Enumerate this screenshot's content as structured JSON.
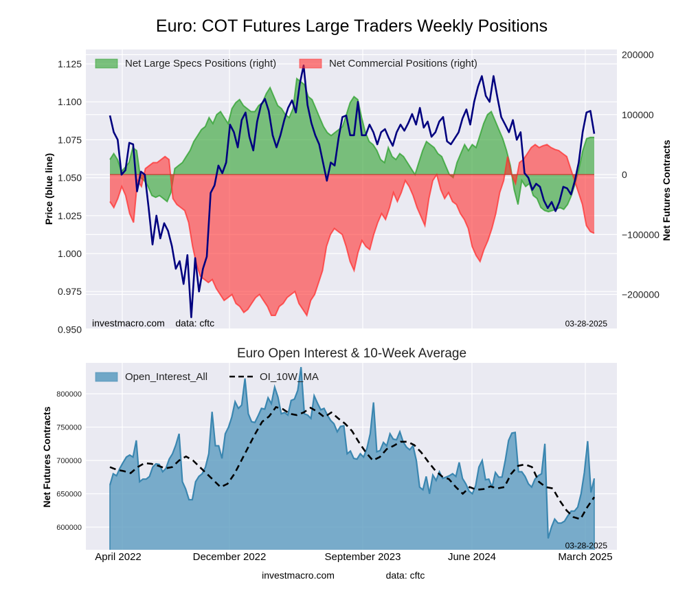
{
  "title": "Euro: COT Futures Large Traders Weekly Positions",
  "chart_data": [
    {
      "type": "area",
      "title": "Euro: COT Futures Large Traders Weekly Positions",
      "ylabel_left": "Price (blue line)",
      "ylabel_right": "Net Futures Contracts",
      "ylim_left": [
        0.95,
        1.13
      ],
      "ylim_right": [
        -260000,
        205000
      ],
      "yticks_left": [
        "0.950",
        "0.975",
        "1.000",
        "1.025",
        "1.050",
        "1.075",
        "1.100",
        "1.125"
      ],
      "yticks_left_values": [
        0.95,
        0.975,
        1.0,
        1.025,
        1.05,
        1.075,
        1.1,
        1.125
      ],
      "yticks_right": [
        "200000",
        "100000",
        "0",
        "−100000",
        "−200000"
      ],
      "yticks_right_values": [
        200000,
        100000,
        0,
        -100000,
        -200000
      ],
      "grid": true,
      "legend_position": "top",
      "legend": [
        {
          "label": "Net Large Specs Positions (right)",
          "color": "#2ca02c"
        },
        {
          "label": "Net Commercial Positions (right)",
          "color": "#ff3030"
        }
      ],
      "x_period": "2022-03 to 2025-03-28 (weekly, sampled)",
      "series": [
        {
          "name": "Price",
          "axis": "left",
          "color": "#00007f",
          "values": [
            1.091,
            1.08,
            1.075,
            1.052,
            1.055,
            1.073,
            1.072,
            1.041,
            1.054,
            1.052,
            1.03,
            1.006,
            1.025,
            1.01,
            1.02,
            1.015,
            1.005,
            0.99,
            0.995,
            0.98,
            0.999,
            0.958,
            0.997,
            0.975,
            0.99,
            0.998,
            1.04,
            1.045,
            1.058,
            1.053,
            1.06,
            1.085,
            1.08,
            1.07,
            1.088,
            1.093,
            1.077,
            1.068,
            1.087,
            1.098,
            1.102,
            1.094,
            1.078,
            1.07,
            1.078,
            1.088,
            1.096,
            1.101,
            1.093,
            1.112,
            1.124,
            1.098,
            1.086,
            1.078,
            1.072,
            1.06,
            1.048,
            1.06,
            1.058,
            1.076,
            1.09,
            1.091,
            1.078,
            1.078,
            1.1,
            1.078,
            1.078,
            1.085,
            1.08,
            1.072,
            1.08,
            1.082,
            1.076,
            1.071,
            1.08,
            1.085,
            1.081,
            1.086,
            1.092,
            1.085,
            1.096,
            1.083,
            1.087,
            1.077,
            1.08,
            1.087,
            1.09,
            1.074,
            1.072,
            1.076,
            1.08,
            1.089,
            1.095,
            1.085,
            1.1,
            1.11,
            1.117,
            1.104,
            1.1,
            1.117,
            1.103,
            1.09,
            1.085,
            1.08,
            1.088,
            1.075,
            1.08,
            1.053,
            1.05,
            1.042,
            1.046,
            1.044,
            1.035,
            1.03,
            1.034,
            1.028,
            1.034,
            1.044,
            1.043,
            1.039,
            1.048,
            1.06,
            1.08,
            1.093,
            1.094,
            1.079
          ]
        },
        {
          "name": "Net Large Specs Positions",
          "axis": "right",
          "color": "#2ca02c",
          "values": [
            25000,
            35000,
            25000,
            5000,
            12000,
            20000,
            45000,
            40000,
            -5000,
            -10000,
            -20000,
            -35000,
            -38000,
            -35000,
            -40000,
            -45000,
            -30000,
            10000,
            15000,
            20000,
            30000,
            40000,
            55000,
            65000,
            75000,
            80000,
            95000,
            85000,
            100000,
            105000,
            95000,
            85000,
            110000,
            120000,
            125000,
            115000,
            110000,
            105000,
            105000,
            115000,
            120000,
            135000,
            145000,
            130000,
            115000,
            110000,
            100000,
            95000,
            110000,
            160000,
            155000,
            150000,
            130000,
            125000,
            110000,
            95000,
            80000,
            70000,
            65000,
            70000,
            75000,
            80000,
            100000,
            120000,
            130000,
            125000,
            95000,
            70000,
            55000,
            50000,
            40000,
            25000,
            20000,
            45000,
            30000,
            25000,
            35000,
            30000,
            20000,
            10000,
            0,
            20000,
            40000,
            55000,
            50000,
            45000,
            35000,
            30000,
            15000,
            0,
            -5000,
            20000,
            35000,
            50000,
            40000,
            50000,
            45000,
            65000,
            85000,
            100000,
            105000,
            90000,
            75000,
            60000,
            40000,
            15000,
            -25000,
            -50000,
            -10000,
            -20000,
            -15000,
            -35000,
            -40000,
            -55000,
            -60000,
            -62000,
            -60000,
            -58000,
            -55000,
            -58000,
            -50000,
            -35000,
            -15000,
            10000,
            40000,
            60000,
            62000,
            62000
          ]
        },
        {
          "name": "Net Commercial Positions",
          "axis": "right",
          "color": "#ff3030",
          "values": [
            -45000,
            -55000,
            -40000,
            -20000,
            -35000,
            -65000,
            -80000,
            -10000,
            -20000,
            10000,
            15000,
            20000,
            20000,
            25000,
            30000,
            25000,
            -40000,
            -50000,
            -55000,
            -60000,
            -80000,
            -120000,
            -150000,
            -170000,
            -175000,
            -180000,
            -175000,
            -190000,
            -200000,
            -210000,
            -205000,
            -200000,
            -215000,
            -220000,
            -230000,
            -225000,
            -215000,
            -205000,
            -200000,
            -210000,
            -220000,
            -235000,
            -235000,
            -220000,
            -215000,
            -205000,
            -200000,
            -195000,
            -215000,
            -225000,
            -235000,
            -210000,
            -200000,
            -180000,
            -160000,
            -120000,
            -100000,
            -90000,
            -95000,
            -100000,
            -120000,
            -145000,
            -160000,
            -130000,
            -110000,
            -120000,
            -125000,
            -100000,
            -80000,
            -65000,
            -75000,
            -55000,
            -30000,
            -45000,
            -30000,
            -10000,
            -20000,
            -35000,
            -55000,
            -70000,
            -85000,
            -40000,
            -10000,
            0,
            -25000,
            -40000,
            -30000,
            -45000,
            -50000,
            -65000,
            -75000,
            -90000,
            -120000,
            -135000,
            -145000,
            -125000,
            -110000,
            -90000,
            -65000,
            -30000,
            -10000,
            30000,
            0,
            -15000,
            20000,
            25000,
            35000,
            45000,
            50000,
            45000,
            48000,
            50000,
            45000,
            42000,
            40000,
            35000,
            30000,
            10000,
            -10000,
            -30000,
            -50000,
            -85000,
            -95000,
            -98000
          ]
        }
      ],
      "annotations": [
        "investmacro.com    data: cftc",
        "03-28-2025"
      ]
    },
    {
      "type": "area",
      "title": "Euro Open Interest & 10-Week Average",
      "ylabel": "Net Futures Contracts",
      "ylim": [
        565000,
        840000
      ],
      "yticks": [
        "600000",
        "650000",
        "700000",
        "750000",
        "800000"
      ],
      "yticks_values": [
        600000,
        650000,
        700000,
        750000,
        800000
      ],
      "xticks": [
        "April 2022",
        "December 2022",
        "September 2023",
        "June 2024",
        "March 2025"
      ],
      "grid": true,
      "legend_position": "top-left",
      "legend": [
        {
          "label": "Open_Interest_All",
          "color": "#5b9bbf"
        },
        {
          "label": "OI_10W_MA",
          "color": "#000000",
          "style": "dashed"
        }
      ],
      "series": [
        {
          "name": "Open_Interest_All",
          "color": "#3a86b0",
          "values": [
            663000,
            680000,
            677000,
            688000,
            697000,
            705000,
            708000,
            705000,
            730000,
            668000,
            672000,
            672000,
            676000,
            690000,
            695000,
            694000,
            683000,
            688000,
            702000,
            710000,
            723000,
            740000,
            668000,
            657000,
            641000,
            641000,
            668000,
            676000,
            680000,
            690000,
            710000,
            773000,
            722000,
            722000,
            703000,
            740000,
            750000,
            765000,
            788000,
            778000,
            783000,
            823000,
            770000,
            758000,
            757000,
            767000,
            778000,
            777000,
            794000,
            785000,
            810000,
            795000,
            770000,
            772000,
            768000,
            790000,
            792000,
            805000,
            840000,
            770000,
            768000,
            763000,
            797000,
            786000,
            776000,
            778000,
            768000,
            760000,
            755000,
            743000,
            751000,
            752000,
            710000,
            714000,
            703000,
            702000,
            710000,
            705000,
            718000,
            740000,
            787000,
            713000,
            715000,
            727000,
            722000,
            740000,
            732000,
            731000,
            743000,
            728000,
            720000,
            716000,
            722000,
            700000,
            660000,
            656000,
            676000,
            650000,
            678000,
            670000,
            683000,
            673000,
            675000,
            677000,
            680000,
            676000,
            697000,
            673000,
            665000,
            654000,
            650000,
            662000,
            690000,
            700000,
            671000,
            672000,
            660000,
            682000,
            675000,
            675000,
            700000,
            730000,
            741000,
            742000,
            683000,
            683000,
            676000,
            665000,
            660000,
            672000,
            677000,
            680000,
            725000,
            583000,
            600000,
            612000,
            606000,
            606000,
            609000,
            617000,
            624000,
            624000,
            630000,
            650000,
            682000,
            729000,
            652000,
            673000
          ]
        },
        {
          "name": "OI_10W_MA",
          "color": "#000000",
          "values": [
            690000,
            686000,
            684000,
            681000,
            690000,
            696000,
            695000,
            692000,
            688000,
            690000,
            700000,
            706000,
            700000,
            690000,
            680000,
            670000,
            660000,
            665000,
            680000,
            700000,
            720000,
            740000,
            758000,
            766000,
            780000,
            777000,
            770000,
            768000,
            772000,
            779000,
            773000,
            765000,
            772000,
            763000,
            755000,
            744000,
            727000,
            712000,
            700000,
            705000,
            717000,
            722000,
            728000,
            728000,
            723000,
            712000,
            698000,
            685000,
            676000,
            672000,
            660000,
            650000,
            660000,
            656000,
            657000,
            661000,
            658000,
            660000,
            680000,
            692000,
            694000,
            690000,
            668000,
            660000,
            658000,
            640000,
            625000,
            615000,
            612000,
            630000,
            645000
          ]
        }
      ],
      "annotations": [
        "03-28-2025"
      ]
    }
  ],
  "footer": {
    "left": "investmacro.com",
    "right": "data: cftc"
  }
}
